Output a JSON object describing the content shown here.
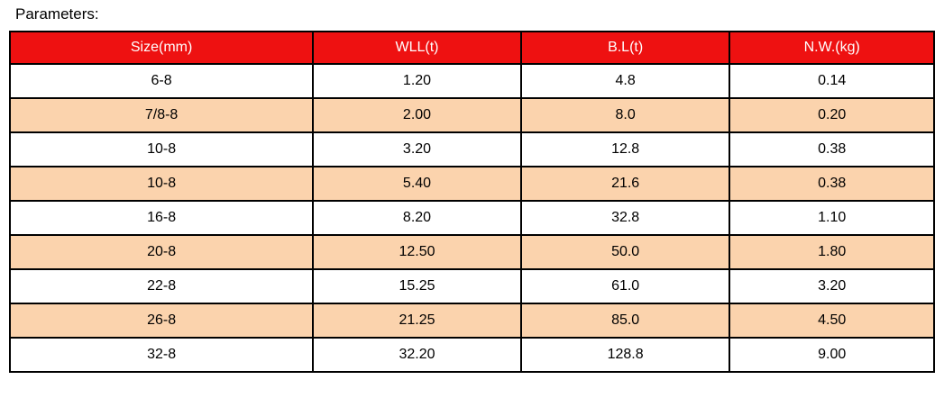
{
  "page": {
    "title": "Parameters:"
  },
  "colors": {
    "header_bg": "#ee1111",
    "header_text": "#ffffff",
    "row_bg": "#ffffff",
    "row_alt_bg": "#fbd3ad",
    "border": "#000000",
    "text": "#000000",
    "page_bg": "#ffffff"
  },
  "chart_data": {
    "type": "table",
    "title": "Parameters:",
    "columns": [
      "Size(mm)",
      "WLL(t)",
      "B.L(t)",
      "N.W.(kg)"
    ],
    "rows": [
      [
        "6-8",
        "1.20",
        "4.8",
        "0.14"
      ],
      [
        "7/8-8",
        "2.00",
        "8.0",
        "0.20"
      ],
      [
        "10-8",
        "3.20",
        "12.8",
        "0.38"
      ],
      [
        "10-8",
        "5.40",
        "21.6",
        "0.38"
      ],
      [
        "16-8",
        "8.20",
        "32.8",
        "1.10"
      ],
      [
        "20-8",
        "12.50",
        "50.0",
        "1.80"
      ],
      [
        "22-8",
        "15.25",
        "61.0",
        "3.20"
      ],
      [
        "26-8",
        "21.25",
        "85.0",
        "4.50"
      ],
      [
        "32-8",
        "32.20",
        "128.8",
        "9.00"
      ]
    ],
    "layout": {
      "header_style": "red-band-white-text",
      "row_striping": "white-and-peach-alternating",
      "grid": true
    }
  }
}
